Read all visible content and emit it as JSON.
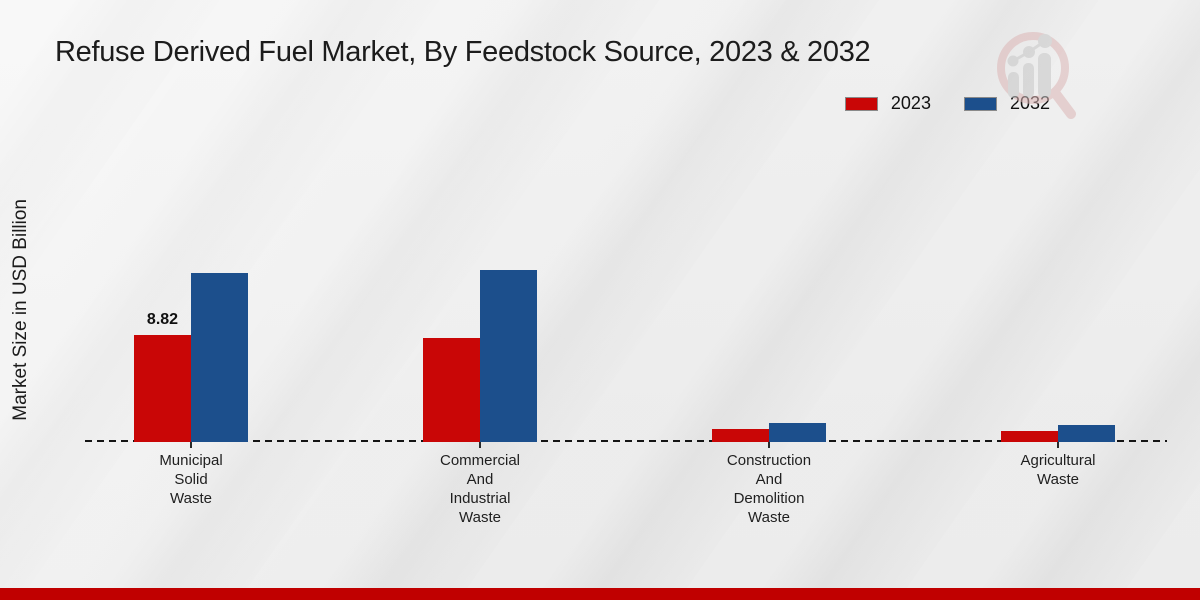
{
  "title": "Refuse Derived Fuel Market, By Feedstock Source, 2023 & 2032",
  "ylabel": "Market Size in USD Billion",
  "legend": [
    {
      "label": "2023",
      "color": "#c90606"
    },
    {
      "label": "2032",
      "color": "#1c4f8c"
    }
  ],
  "chart_data": {
    "type": "bar",
    "title": "Refuse Derived Fuel Market, By Feedstock Source, 2023 & 2032",
    "xlabel": "",
    "ylabel": "Market Size in USD Billion",
    "categories": [
      [
        "Municipal",
        "Solid",
        "Waste"
      ],
      [
        "Commercial",
        "And",
        "Industrial",
        "Waste"
      ],
      [
        "Construction",
        "And",
        "Demolition",
        "Waste"
      ],
      [
        "Agricultural",
        "Waste"
      ]
    ],
    "series": [
      {
        "name": "2023",
        "color": "#c90606",
        "values": [
          8.82,
          8.6,
          1.05,
          0.9
        ]
      },
      {
        "name": "2032",
        "color": "#1c4f8c",
        "values": [
          13.9,
          14.2,
          1.6,
          1.4
        ]
      }
    ],
    "value_labels": [
      {
        "series": "2023",
        "category_index": 0,
        "text": "8.82"
      }
    ],
    "ylim": [
      0,
      15
    ],
    "grid": false,
    "axis_style": "dashed-baseline-only",
    "legend_position": "top-right"
  },
  "watermark_icon": "magnifier-growth-chart-logo",
  "footer_color": "#c00000"
}
